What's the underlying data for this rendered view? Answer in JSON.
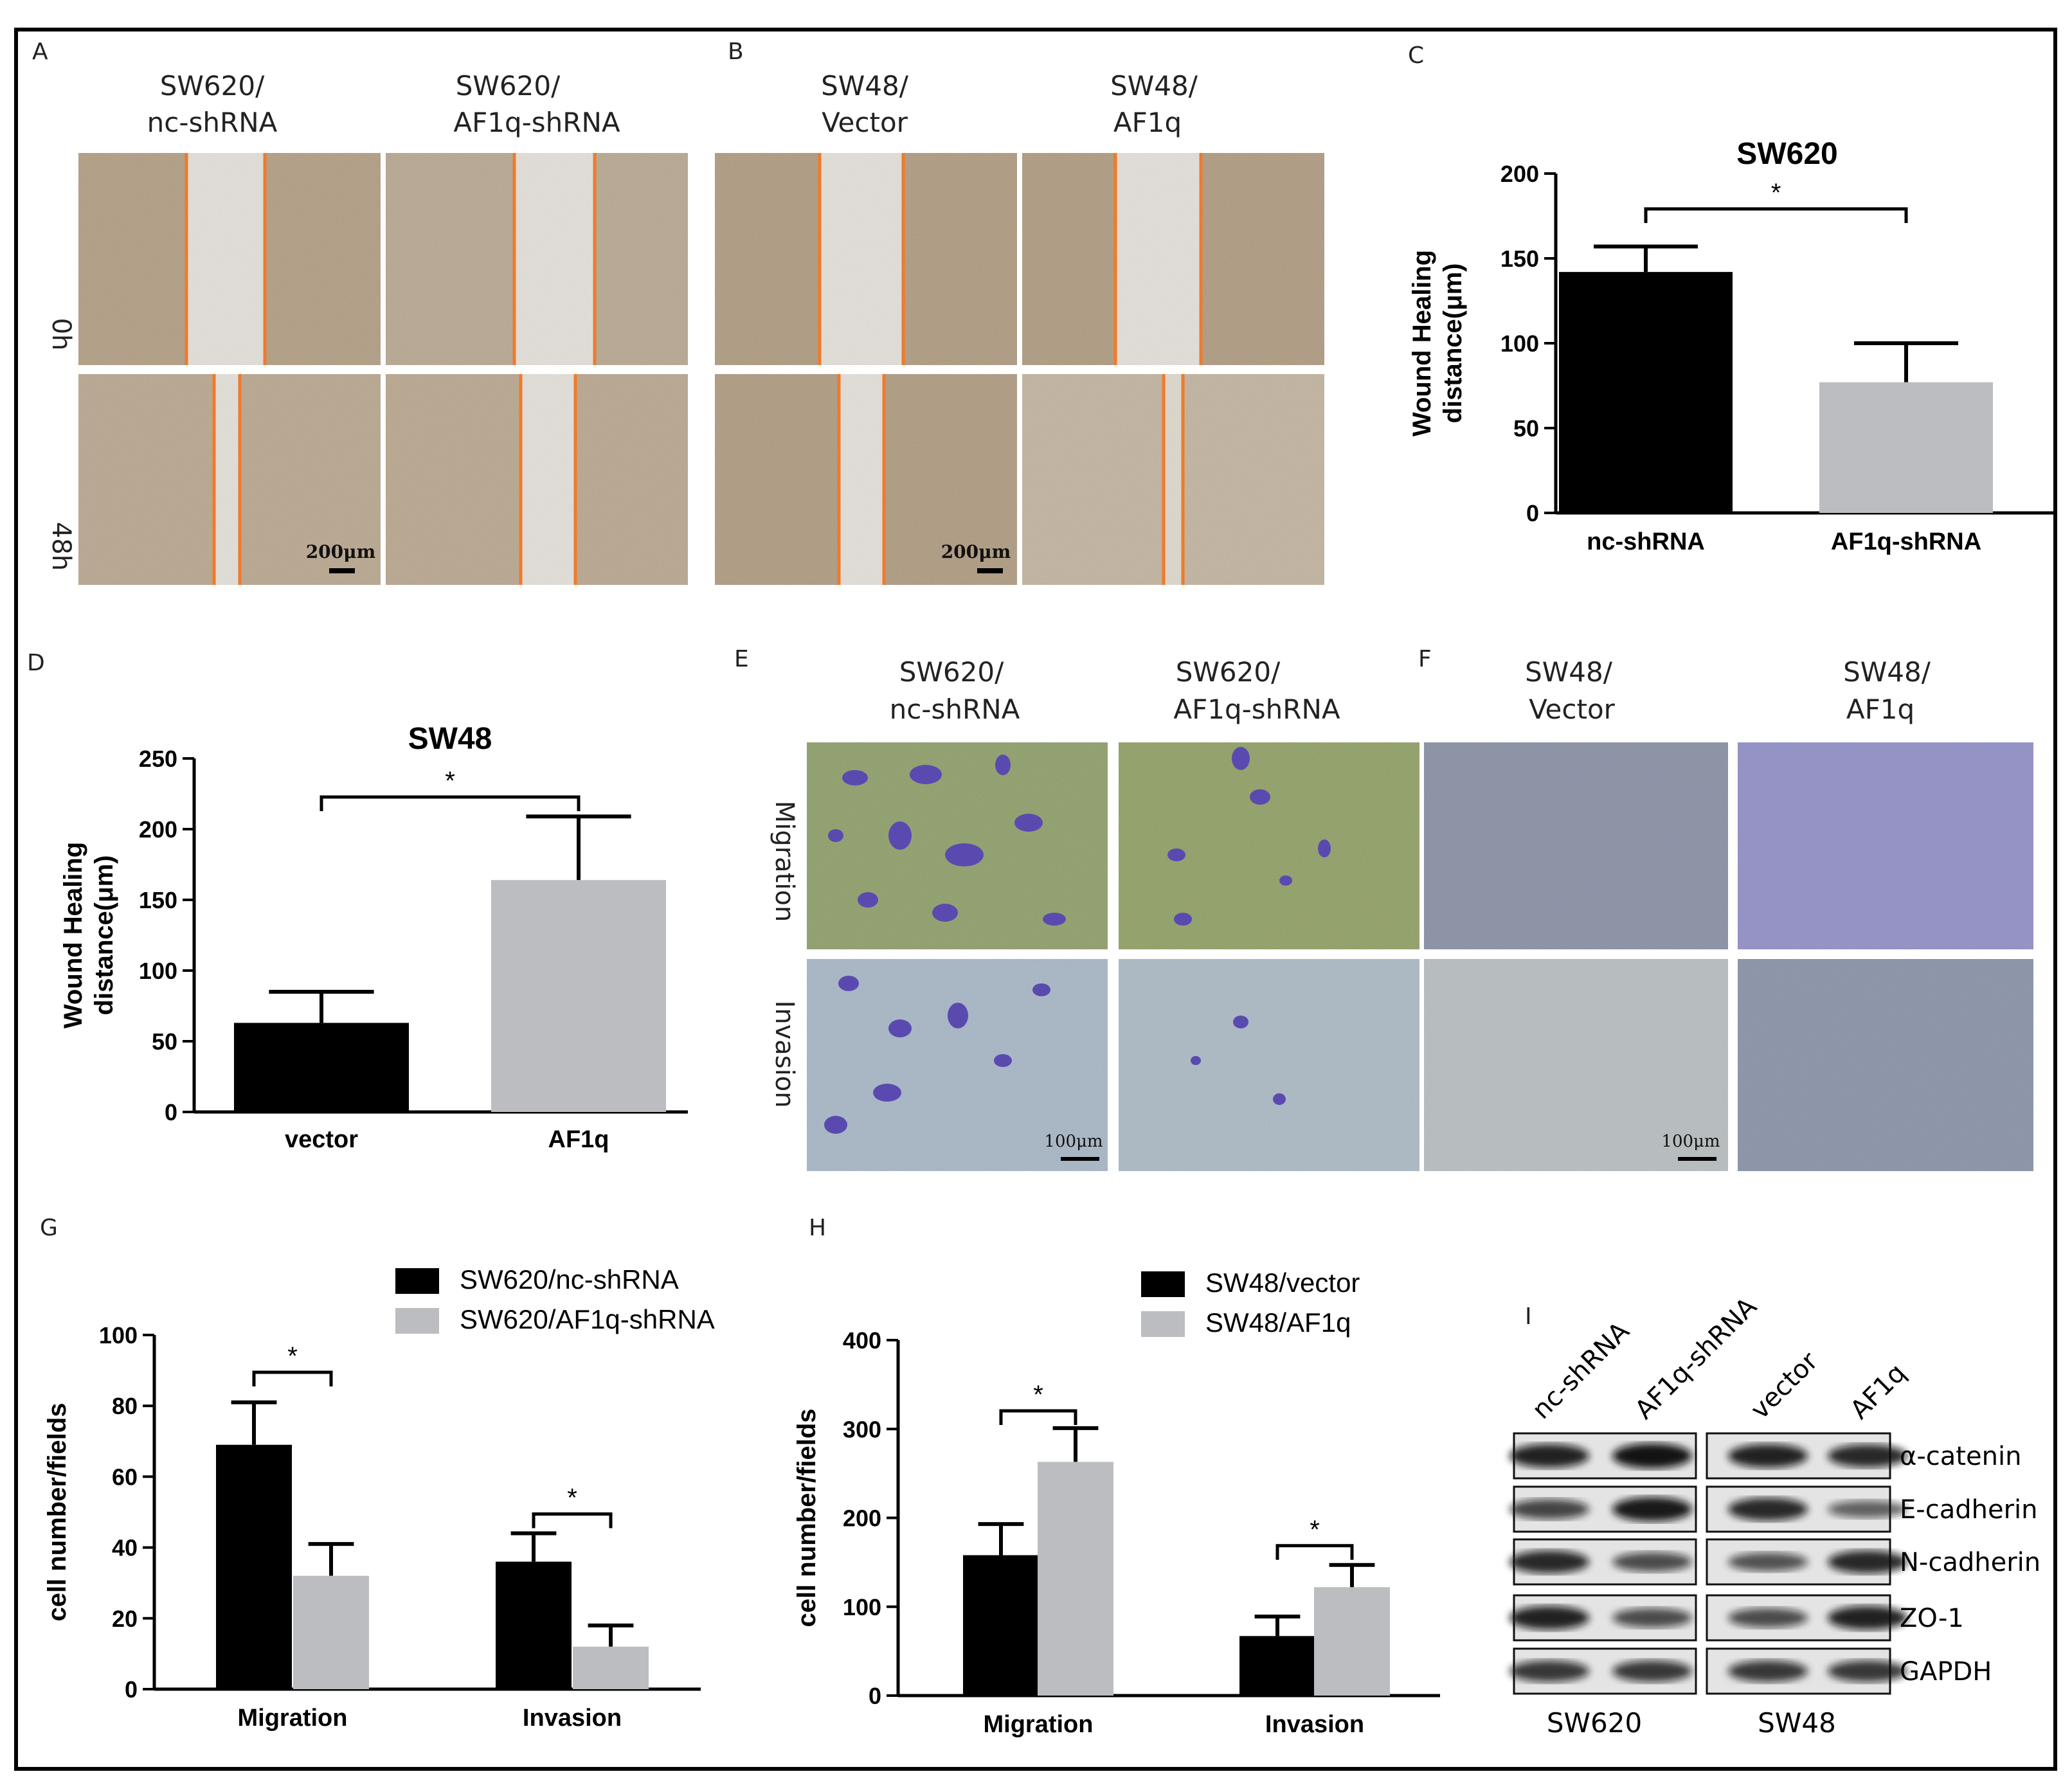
{
  "panel_letters": {
    "A": "A",
    "B": "B",
    "C": "C",
    "D": "D",
    "E": "E",
    "F": "F",
    "G": "G",
    "H": "H",
    "I": "I"
  },
  "panelA": {
    "col1": {
      "line1": "SW620/",
      "line2": "nc-shRNA"
    },
    "col2": {
      "line1": "SW620/",
      "line2": "AF1q-shRNA"
    },
    "row1": "0h",
    "row2": "48h",
    "scale": "200μm",
    "colors": {
      "tissue": "#b09a7e",
      "wound": "#e6e2db",
      "edge": "#f07a2a"
    }
  },
  "panelB": {
    "col1": {
      "line1": "SW48/",
      "line2": "Vector"
    },
    "col2": {
      "line1": "SW48/",
      "line2": "AF1q"
    },
    "scale": "200μm"
  },
  "panelE": {
    "col1": {
      "line1": "SW620/",
      "line2": "nc-shRNA"
    },
    "col2": {
      "line1": "SW620/",
      "line2": "AF1q-shRNA"
    },
    "row1": "Migration",
    "row2": "Invasion",
    "scale": "100μm",
    "colors": {
      "green": "#8a9c62",
      "blue": "#a5b5c6",
      "stain": "#5a4ab0"
    }
  },
  "panelF": {
    "col1": {
      "line1": "SW48/",
      "line2": "Vector"
    },
    "col2": {
      "line1": "SW48/",
      "line2": "AF1q"
    },
    "scale": "100μm",
    "colors": {
      "vector": "#c4d0c8",
      "af1q": "#d9d6ec",
      "stain": "#2a2a6e"
    }
  },
  "chart_data": [
    {
      "id": "C",
      "type": "bar",
      "title": "SW620",
      "ylabel": "Wound Healing distance(μm)",
      "ylim": [
        0,
        200
      ],
      "yticks": [
        0,
        50,
        100,
        150,
        200
      ],
      "categories": [
        "nc-shRNA",
        "AF1q-shRNA"
      ],
      "values": [
        142,
        77
      ],
      "errors": [
        15,
        23
      ],
      "colors": [
        "#000000",
        "#bcbdc0"
      ],
      "significance": "*"
    },
    {
      "id": "D",
      "type": "bar",
      "title": "SW48",
      "ylabel": "Wound Healing distance(μm)",
      "ylim": [
        0,
        250
      ],
      "yticks": [
        0,
        50,
        100,
        150,
        200,
        250
      ],
      "categories": [
        "vector",
        "AF1q"
      ],
      "values": [
        63,
        164
      ],
      "errors": [
        22,
        45
      ],
      "colors": [
        "#000000",
        "#bcbdc0"
      ],
      "significance": "*"
    },
    {
      "id": "G",
      "type": "bar",
      "ylabel": "cell number/fields",
      "ylim": [
        0,
        100
      ],
      "yticks": [
        0,
        20,
        40,
        60,
        80,
        100
      ],
      "categories": [
        "Migration",
        "Invasion"
      ],
      "series": [
        {
          "name": "SW620/nc-shRNA",
          "values": [
            69,
            36
          ],
          "errors": [
            12,
            8
          ]
        },
        {
          "name": "SW620/AF1q-shRNA",
          "values": [
            32,
            12
          ],
          "errors": [
            9,
            6
          ]
        }
      ],
      "colors": [
        "#000000",
        "#bcbdc0"
      ],
      "legend_position": "top-right",
      "significance": [
        "*",
        "*"
      ]
    },
    {
      "id": "H",
      "type": "bar",
      "ylabel": "cell number/fields",
      "ylim": [
        0,
        400
      ],
      "yticks": [
        0,
        100,
        200,
        300,
        400
      ],
      "categories": [
        "Migration",
        "Invasion"
      ],
      "series": [
        {
          "name": "SW48/vector",
          "values": [
            158,
            67
          ],
          "errors": [
            35,
            22
          ]
        },
        {
          "name": "SW48/AF1q",
          "values": [
            263,
            122
          ],
          "errors": [
            38,
            25
          ]
        }
      ],
      "colors": [
        "#000000",
        "#bcbdc0"
      ],
      "legend_position": "top-right",
      "significance": [
        "*",
        "*"
      ]
    }
  ],
  "blot": {
    "lanes": [
      "nc-shRNA",
      "AF1q-shRNA",
      "vector",
      "AF1q"
    ],
    "proteins": [
      "α-catenin",
      "E-cadherin",
      "N-cadherin",
      "ZO-1",
      "GAPDH"
    ],
    "groups": [
      "SW620",
      "SW48"
    ],
    "intensity": [
      [
        0.85,
        0.95,
        0.85,
        0.8
      ],
      [
        0.6,
        0.9,
        0.8,
        0.4
      ],
      [
        0.8,
        0.55,
        0.5,
        0.8
      ],
      [
        0.85,
        0.55,
        0.55,
        0.85
      ],
      [
        0.7,
        0.7,
        0.7,
        0.7
      ]
    ]
  }
}
